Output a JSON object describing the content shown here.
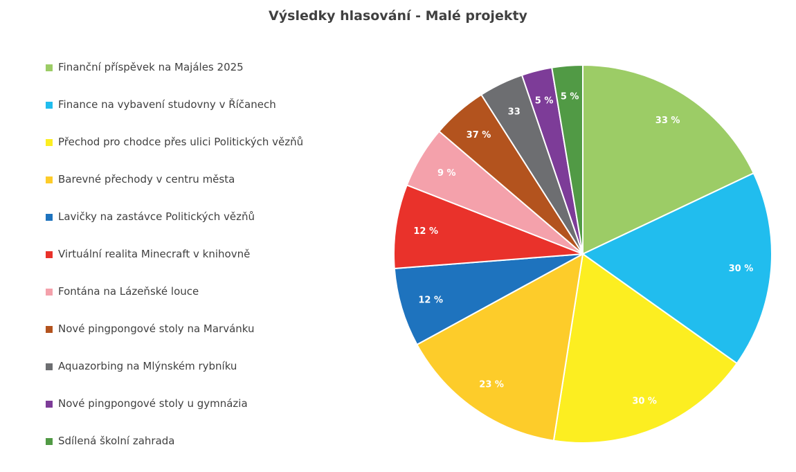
{
  "chart_data": {
    "type": "pie",
    "title": "Výsledky hlasování - Malé projekty",
    "legend_position": "left",
    "categories": [
      "Finanční příspěvek na Majáles 2025",
      "Finance na vybavení studovny v Říčanech",
      "Přechod pro chodce přes ulici Politických vězňů",
      "Barevné přechody v centru města",
      "Lavičky na zastávce Politických vězňů",
      "Virtuální realita Minecraft v knihovně",
      "Fontána na Lázeňské louce",
      "Nové pingpongové stoly na Marvánku",
      "Aquazorbing na Mlýnském rybníku",
      "Nové pingpongové stoly u gymnázia",
      "Sdílená školní zahrada"
    ],
    "values": [
      33,
      30,
      30,
      23,
      12,
      12,
      9,
      37,
      33,
      5,
      5
    ],
    "data_labels": [
      "33 %",
      "30 %",
      "30 %",
      "23 %",
      "12 %",
      "12 %",
      "9 %",
      "37 %",
      "33",
      "5 %",
      "5 %"
    ],
    "colors": [
      "#9ccc66",
      "#21bdee",
      "#fcee21",
      "#fdcc2a",
      "#1e73be",
      "#e9322b",
      "#f4a1ab",
      "#b3531e",
      "#6d6e71",
      "#7d3c98",
      "#519a45"
    ],
    "label_colors": [
      "#ffffff",
      "#ffffff",
      "#ffffff",
      "#ffffff",
      "#ffffff",
      "#ffffff",
      "#ffffff",
      "#ffffff",
      "#ffffff",
      "#ffffff",
      "#ffffff"
    ],
    "slice_angle_shares": [
      0.185,
      0.1737,
      0.1817,
      0.1501,
      0.0694,
      0.0738,
      0.0546,
      0.0487,
      0.0392,
      0.0268,
      0.027
    ]
  }
}
